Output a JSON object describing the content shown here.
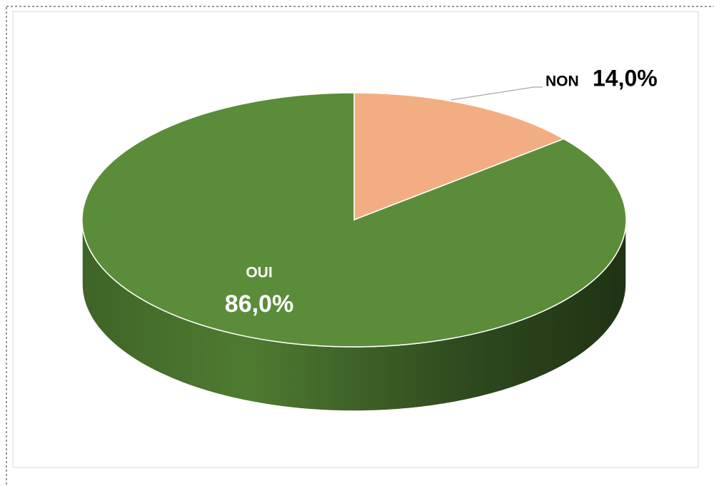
{
  "chart_data": {
    "type": "pie",
    "categories": [
      "OUI",
      "NON"
    ],
    "values": [
      86.0,
      14.0
    ],
    "value_labels": [
      "86,0%",
      "14,0%"
    ],
    "colors": [
      "#5b8c3a",
      "#f2ae82"
    ]
  }
}
